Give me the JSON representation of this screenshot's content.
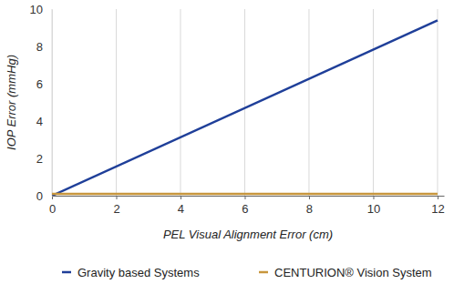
{
  "chart_data": {
    "type": "line",
    "x_label": "PEL Visual Alignment Error (cm)",
    "y_label": "IOP Error (mmHg)",
    "x": [
      0,
      12
    ],
    "series": [
      {
        "name": "Gravity based Systems",
        "color": "#1f3f99",
        "values": [
          0,
          9.4
        ]
      },
      {
        "name": "CENTURION® Vision System",
        "color": "#c8963c",
        "values": [
          0.1,
          0.1
        ]
      }
    ],
    "xlim": [
      0,
      12.2
    ],
    "xticks": [
      0,
      2,
      4,
      6,
      8,
      10,
      12
    ],
    "ylim": [
      0,
      10
    ],
    "yticks": [
      0,
      2,
      4,
      6,
      8,
      10
    ],
    "grid": true,
    "legend": "bottom"
  }
}
